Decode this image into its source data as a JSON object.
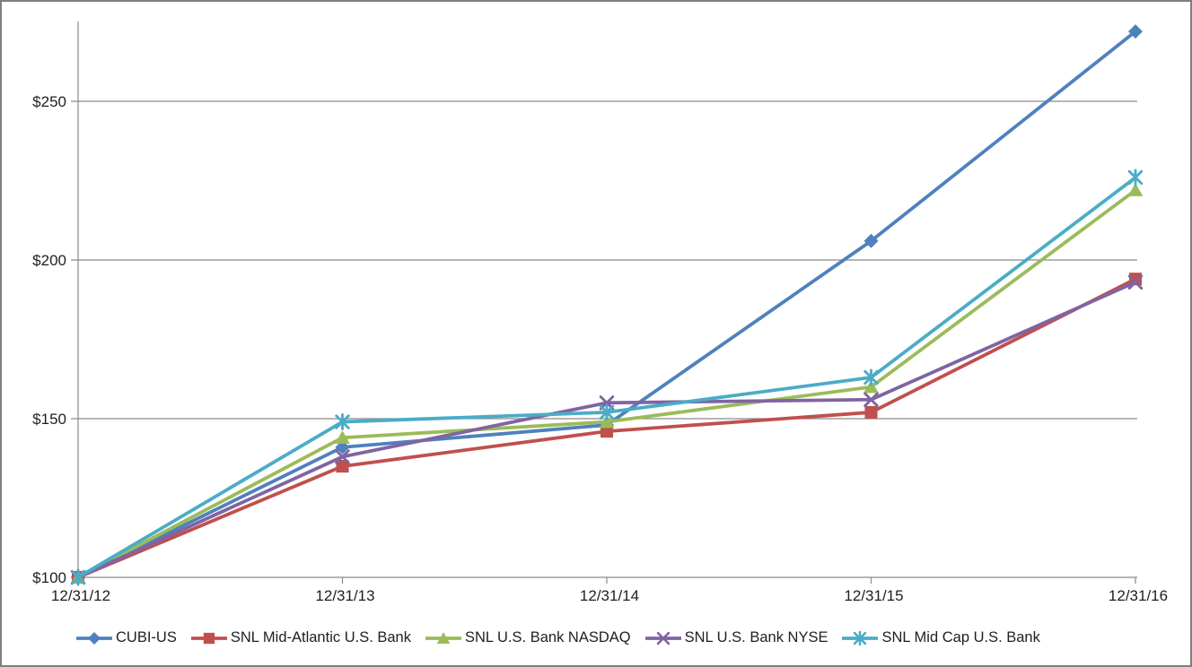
{
  "chart_data": {
    "type": "line",
    "title": "",
    "xlabel": "",
    "ylabel": "",
    "categories": [
      "12/31/12",
      "12/31/13",
      "12/31/14",
      "12/31/15",
      "12/31/16"
    ],
    "series": [
      {
        "name": "CUBI-US",
        "color": "#4F81BD",
        "marker": "diamond",
        "values": [
          100,
          141,
          148,
          206,
          272
        ]
      },
      {
        "name": "SNL Mid-Atlantic U.S. Bank",
        "color": "#C0504D",
        "marker": "square",
        "values": [
          100,
          135,
          146,
          152,
          194
        ]
      },
      {
        "name": "SNL U.S. Bank NASDAQ",
        "color": "#9BBB59",
        "marker": "triangle",
        "values": [
          100,
          144,
          149,
          160,
          222
        ]
      },
      {
        "name": "SNL U.S. Bank NYSE",
        "color": "#8064A2",
        "marker": "x",
        "values": [
          100,
          138,
          155,
          156,
          193
        ]
      },
      {
        "name": "SNL Mid Cap U.S. Bank",
        "color": "#4BACC6",
        "marker": "asterisk",
        "values": [
          100,
          149,
          152,
          163,
          226
        ]
      }
    ],
    "y_tick_labels": [
      "$100",
      "$150",
      "$200",
      "$250"
    ],
    "y_tick_values": [
      100,
      150,
      200,
      250
    ],
    "ylim": [
      100,
      275
    ],
    "grid": "horizontal",
    "legend_position": "bottom",
    "axis_color": "#8A8A8A",
    "text_color": "#1F1F1F"
  }
}
